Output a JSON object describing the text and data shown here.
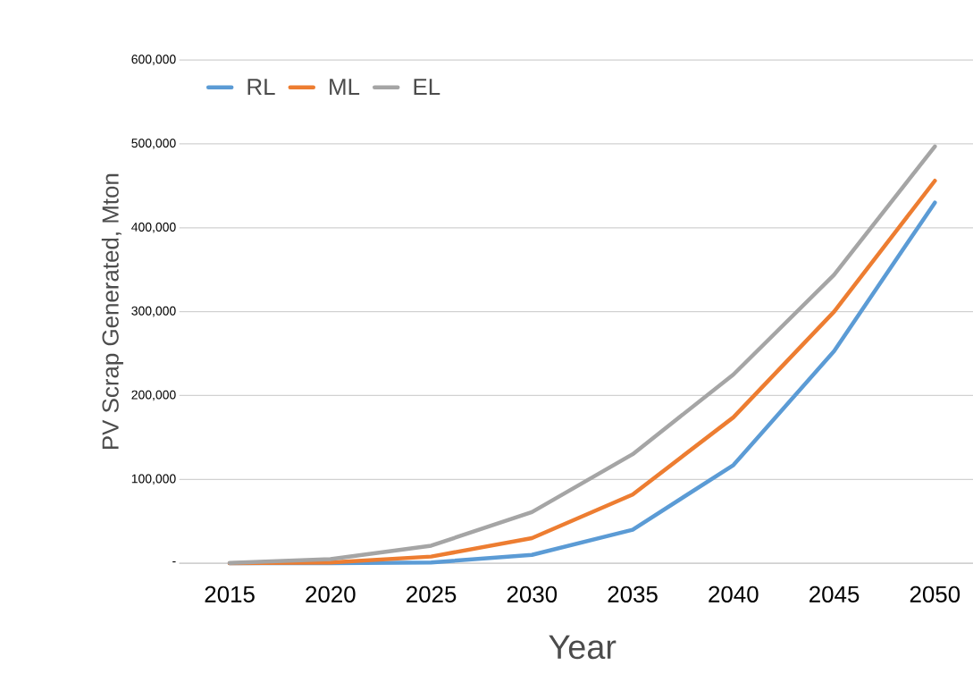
{
  "chart_data": {
    "type": "line",
    "xlabel": "Year",
    "ylabel": "PV Scrap Generated, Mton",
    "categories": [
      "2015",
      "2020",
      "2025",
      "2030",
      "2035",
      "2040",
      "2045",
      "2050"
    ],
    "series": [
      {
        "name": "RL",
        "color": "#5b9bd5",
        "values": [
          0,
          0,
          1000,
          10000,
          40000,
          117000,
          253000,
          430000
        ]
      },
      {
        "name": "ML",
        "color": "#ed7d31",
        "values": [
          0,
          1000,
          8000,
          30000,
          82000,
          174000,
          300000,
          456000
        ]
      },
      {
        "name": "EL",
        "color": "#a5a5a5",
        "values": [
          500,
          5000,
          21000,
          61000,
          130000,
          225000,
          344000,
          497000
        ]
      }
    ],
    "ylim": [
      0,
      600000
    ],
    "yticks": [
      {
        "value": 0,
        "label": "-"
      },
      {
        "value": 100000,
        "label": "100,000"
      },
      {
        "value": 200000,
        "label": "200,000"
      },
      {
        "value": 300000,
        "label": "300,000"
      },
      {
        "value": 400000,
        "label": "400,000"
      },
      {
        "value": 500000,
        "label": "500,000"
      },
      {
        "value": 600000,
        "label": "600,000"
      }
    ],
    "grid": "y",
    "legend": "top left",
    "marker": "none",
    "line_style": "solid"
  }
}
